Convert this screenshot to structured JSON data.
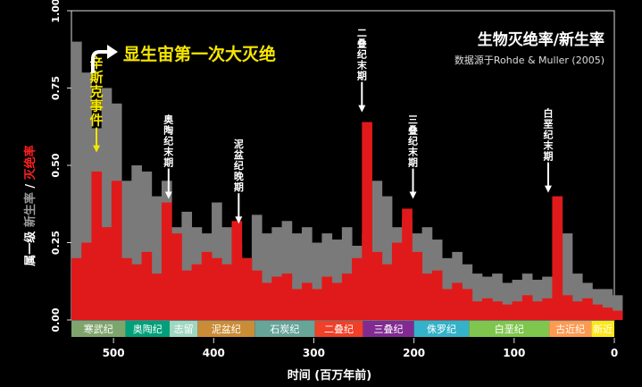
{
  "chart_data": {
    "type": "bar",
    "title": "生物灭绝率/新生率",
    "subtitle": "数据源于Rohde & Muller (2005)",
    "headline": "显生宙第一次大灭绝",
    "xlabel": "时间 (百万年前)",
    "ylabel_parts": [
      "属一级 ",
      "新生率",
      " / ",
      "灭绝率"
    ],
    "xlim": [
      542,
      0
    ],
    "ylim": [
      0,
      1.0
    ],
    "yticks": [
      "0.00",
      "0.25",
      "0.50",
      "0.75",
      "1.00"
    ],
    "ytick_values": [
      0,
      0.25,
      0.5,
      0.75,
      1.0
    ],
    "xticks": [
      "500",
      "400",
      "300",
      "200",
      "100",
      "0"
    ],
    "xtick_values": [
      500,
      400,
      300,
      200,
      100,
      0
    ],
    "series": [
      {
        "name": "新生率",
        "color": "#7a7a7a",
        "x": [
          542,
          532,
          522,
          512,
          502,
          492,
          482,
          472,
          462,
          452,
          442,
          432,
          422,
          412,
          402,
          392,
          382,
          372,
          362,
          352,
          342,
          332,
          322,
          312,
          302,
          292,
          282,
          272,
          262,
          252,
          242,
          232,
          222,
          212,
          202,
          192,
          182,
          172,
          162,
          152,
          142,
          132,
          122,
          112,
          102,
          92,
          82,
          72,
          62,
          52,
          42,
          32,
          22,
          12,
          2
        ],
        "values": [
          0.9,
          0.8,
          0.62,
          0.75,
          0.7,
          0.45,
          0.5,
          0.48,
          0.4,
          0.45,
          0.3,
          0.35,
          0.3,
          0.28,
          0.38,
          0.3,
          0.25,
          0.2,
          0.34,
          0.28,
          0.3,
          0.32,
          0.28,
          0.3,
          0.25,
          0.28,
          0.26,
          0.3,
          0.24,
          0.28,
          0.45,
          0.4,
          0.3,
          0.32,
          0.28,
          0.3,
          0.26,
          0.2,
          0.22,
          0.18,
          0.15,
          0.14,
          0.15,
          0.12,
          0.13,
          0.15,
          0.13,
          0.14,
          0.3,
          0.28,
          0.15,
          0.12,
          0.1,
          0.1,
          0.08
        ]
      },
      {
        "name": "灭绝率",
        "color": "#e01a1a",
        "x": [
          542,
          532,
          522,
          512,
          502,
          492,
          482,
          472,
          462,
          452,
          442,
          432,
          422,
          412,
          402,
          392,
          382,
          372,
          362,
          352,
          342,
          332,
          322,
          312,
          302,
          292,
          282,
          272,
          262,
          252,
          242,
          232,
          222,
          212,
          202,
          192,
          182,
          172,
          162,
          152,
          142,
          132,
          122,
          112,
          102,
          92,
          82,
          72,
          62,
          52,
          42,
          32,
          22,
          12,
          2
        ],
        "values": [
          0.2,
          0.25,
          0.48,
          0.3,
          0.45,
          0.2,
          0.18,
          0.22,
          0.15,
          0.38,
          0.28,
          0.16,
          0.18,
          0.22,
          0.2,
          0.18,
          0.32,
          0.2,
          0.16,
          0.12,
          0.14,
          0.15,
          0.1,
          0.12,
          0.1,
          0.14,
          0.12,
          0.15,
          0.2,
          0.64,
          0.22,
          0.18,
          0.25,
          0.36,
          0.22,
          0.15,
          0.16,
          0.1,
          0.12,
          0.1,
          0.06,
          0.07,
          0.06,
          0.05,
          0.06,
          0.08,
          0.06,
          0.07,
          0.4,
          0.08,
          0.06,
          0.07,
          0.05,
          0.04,
          0.03
        ]
      }
    ],
    "annotations": [
      {
        "label": "辛斯克事件",
        "x": 517,
        "y": 0.53,
        "color": "#f5e600"
      },
      {
        "label": "奥陶纪末期",
        "x": 445,
        "y": 0.38,
        "color": "#ffffff"
      },
      {
        "label": "泥盆纪晚期",
        "x": 375,
        "y": 0.3,
        "color": "#ffffff"
      },
      {
        "label": "二叠纪末期",
        "x": 252,
        "y": 0.66,
        "color": "#ffffff"
      },
      {
        "label": "三叠纪末期",
        "x": 201,
        "y": 0.38,
        "color": "#ffffff"
      },
      {
        "label": "白垩纪末期",
        "x": 66,
        "y": 0.4,
        "color": "#ffffff"
      }
    ],
    "periods": [
      {
        "name": "寒武纪",
        "start": 542,
        "end": 488,
        "color": "#7fa56e"
      },
      {
        "name": "奥陶纪",
        "start": 488,
        "end": 444,
        "color": "#00a07a"
      },
      {
        "name": "志留",
        "start": 444,
        "end": 416,
        "color": "#9fd7c1"
      },
      {
        "name": "泥盆纪",
        "start": 416,
        "end": 359,
        "color": "#cb8c37"
      },
      {
        "name": "石炭纪",
        "start": 359,
        "end": 299,
        "color": "#67a599"
      },
      {
        "name": "二叠纪",
        "start": 299,
        "end": 251,
        "color": "#f04028"
      },
      {
        "name": "三叠纪",
        "start": 251,
        "end": 200,
        "color": "#812b92"
      },
      {
        "name": "侏罗纪",
        "start": 200,
        "end": 145,
        "color": "#34b2c9"
      },
      {
        "name": "白垩纪",
        "start": 145,
        "end": 65,
        "color": "#7fc64e"
      },
      {
        "name": "古近纪",
        "start": 65,
        "end": 23,
        "color": "#fd9a52"
      },
      {
        "name": "新近",
        "start": 23,
        "end": 0,
        "color": "#ffe619"
      }
    ]
  }
}
